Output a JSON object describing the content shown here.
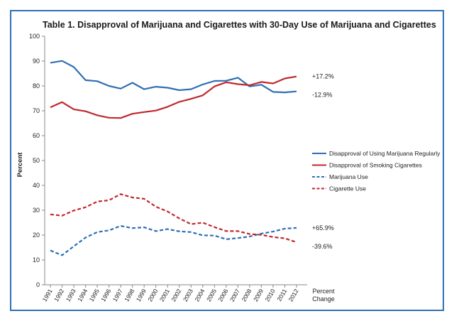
{
  "chart_data": {
    "type": "line",
    "title": "Table 1. Disapproval of Marijuana and Cigarettes with 30-Day Use of Marijuana and Cigarettes",
    "ylabel": "Percent",
    "xlabel": "Percent Change",
    "ylim": [
      0,
      100
    ],
    "yticks": [
      0,
      10,
      20,
      30,
      40,
      50,
      60,
      70,
      80,
      90,
      100
    ],
    "grid": false,
    "legend_position": "right",
    "x": [
      "1991",
      "1992",
      "1993",
      "1994",
      "1995",
      "1996",
      "1997",
      "1998",
      "1999",
      "2000",
      "2001",
      "2002",
      "2003",
      "2004",
      "2005",
      "2006",
      "2007",
      "2008",
      "2009",
      "2010",
      "2011",
      "2012"
    ],
    "series": [
      {
        "name": "Disapproval of Using Marijuana Regularly",
        "color": "#2e6fb5",
        "dash": false,
        "values": [
          89.3,
          90.1,
          87.6,
          82.3,
          81.9,
          80.0,
          78.9,
          81.3,
          78.7,
          79.7,
          79.3,
          78.3,
          78.7,
          80.6,
          82.0,
          82.1,
          83.3,
          79.8,
          80.5,
          77.6,
          77.4,
          77.8
        ],
        "percent_change": "-12.9%"
      },
      {
        "name": "Disapproval of Smoking Cigarettes",
        "color": "#c0282d",
        "dash": false,
        "values": [
          71.4,
          73.5,
          70.6,
          69.8,
          68.2,
          67.2,
          67.1,
          68.8,
          69.5,
          70.1,
          71.6,
          73.6,
          74.8,
          76.2,
          79.8,
          81.5,
          80.7,
          80.3,
          81.6,
          81.0,
          83.0,
          83.8
        ],
        "percent_change": "+17.2%"
      },
      {
        "name": "Marijuana Use",
        "color": "#2e6fb5",
        "dash": true,
        "values": [
          13.8,
          11.9,
          15.5,
          19.0,
          21.2,
          21.9,
          23.7,
          22.8,
          23.1,
          21.6,
          22.4,
          21.5,
          21.2,
          19.9,
          19.8,
          18.3,
          18.8,
          19.4,
          20.6,
          21.4,
          22.6,
          22.9
        ],
        "percent_change": "+65.9%"
      },
      {
        "name": "Cigarette Use",
        "color": "#c0282d",
        "dash": true,
        "values": [
          28.3,
          27.8,
          29.9,
          31.2,
          33.5,
          34.0,
          36.5,
          35.1,
          34.6,
          31.4,
          29.5,
          26.7,
          24.4,
          25.0,
          23.2,
          21.6,
          21.6,
          20.4,
          20.1,
          19.2,
          18.7,
          17.1
        ],
        "percent_change": "-39.6%"
      }
    ]
  }
}
